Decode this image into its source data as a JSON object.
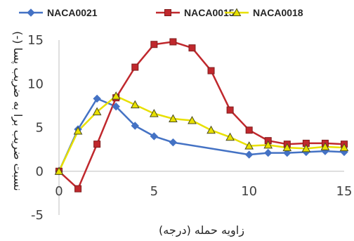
{
  "chart_data": {
    "type": "line",
    "title": "",
    "xlabel": "زاویه حمله (درجه)",
    "ylabel": "نسبت ضریب برا به ضریب پسا (-)",
    "xlim": [
      0,
      15
    ],
    "ylim": [
      -5,
      15
    ],
    "x_ticks": [
      "0",
      "5",
      "10",
      "15"
    ],
    "y_ticks": [
      "-5",
      "0",
      "5",
      "10",
      "15"
    ],
    "grid": false,
    "legend_position": "top",
    "series": [
      {
        "name": "NACA0021",
        "color": "#4472c4",
        "marker": "diamond",
        "x": [
          0,
          1,
          2,
          3,
          4,
          5,
          6,
          10,
          11,
          12,
          13,
          14,
          15
        ],
        "y": [
          0,
          4.8,
          8.3,
          7.4,
          5.2,
          4.0,
          3.3,
          1.9,
          2.1,
          2.1,
          2.2,
          2.3,
          2.2
        ]
      },
      {
        "name": "NACA0015",
        "color": "#c0282d",
        "marker": "square",
        "x": [
          0,
          1,
          2,
          3,
          4,
          5,
          6,
          7,
          8,
          9,
          10,
          11,
          12,
          13,
          14,
          15
        ],
        "y": [
          0,
          -2.0,
          3.1,
          8.4,
          11.9,
          14.5,
          14.8,
          14.1,
          11.5,
          7.0,
          4.7,
          3.5,
          3.1,
          3.2,
          3.2,
          3.1
        ]
      },
      {
        "name": "NACA0018",
        "color": "#e8e000",
        "marker": "triangle",
        "x": [
          0,
          1,
          2,
          3,
          4,
          5,
          6,
          7,
          8,
          9,
          10,
          11,
          12,
          13,
          14,
          15
        ],
        "y": [
          0,
          4.6,
          6.8,
          8.6,
          7.6,
          6.6,
          6.0,
          5.8,
          4.7,
          3.9,
          2.9,
          3.0,
          2.7,
          2.6,
          2.8,
          2.7
        ]
      }
    ]
  }
}
